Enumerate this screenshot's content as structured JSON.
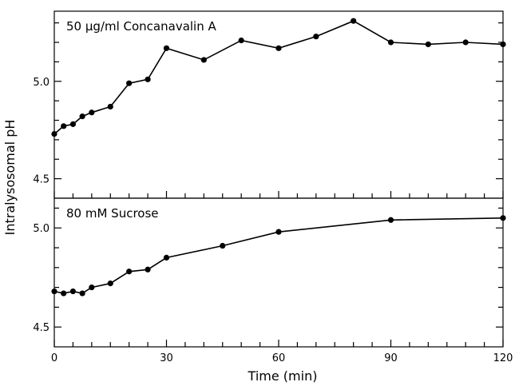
{
  "chart_data": {
    "type": "line",
    "xlabel": "Time (min)",
    "ylabel": "Intralysosomal pH",
    "xlim": [
      0,
      120
    ],
    "x_ticks": [
      0,
      30,
      60,
      90,
      120
    ],
    "x_ticks_minor_step": 5,
    "grid": false,
    "panels": [
      {
        "label": "50 μg/ml Concanavalin A",
        "ylim": [
          4.4,
          5.36
        ],
        "y_ticks": [
          4.5,
          5.0
        ],
        "y_ticks_minor_step": 0.1,
        "series": [
          {
            "x": [
              0,
              2.5,
              5,
              7.5,
              10,
              15,
              20,
              25,
              30,
              40,
              50,
              60,
              70,
              80,
              90,
              100,
              110,
              120
            ],
            "y": [
              4.73,
              4.77,
              4.78,
              4.82,
              4.84,
              4.87,
              4.99,
              5.01,
              5.17,
              5.11,
              5.21,
              5.17,
              5.23,
              5.31,
              5.2,
              5.19,
              5.2,
              5.19
            ]
          }
        ]
      },
      {
        "label": "80 mM Sucrose",
        "ylim": [
          4.4,
          5.15
        ],
        "y_ticks": [
          4.5,
          5.0
        ],
        "y_ticks_minor_step": 0.1,
        "series": [
          {
            "x": [
              0,
              2.5,
              5,
              7.5,
              10,
              15,
              20,
              25,
              30,
              45,
              60,
              90,
              120
            ],
            "y": [
              4.68,
              4.67,
              4.68,
              4.67,
              4.7,
              4.72,
              4.78,
              4.79,
              4.85,
              4.91,
              4.98,
              5.04,
              5.05
            ]
          }
        ]
      }
    ]
  }
}
